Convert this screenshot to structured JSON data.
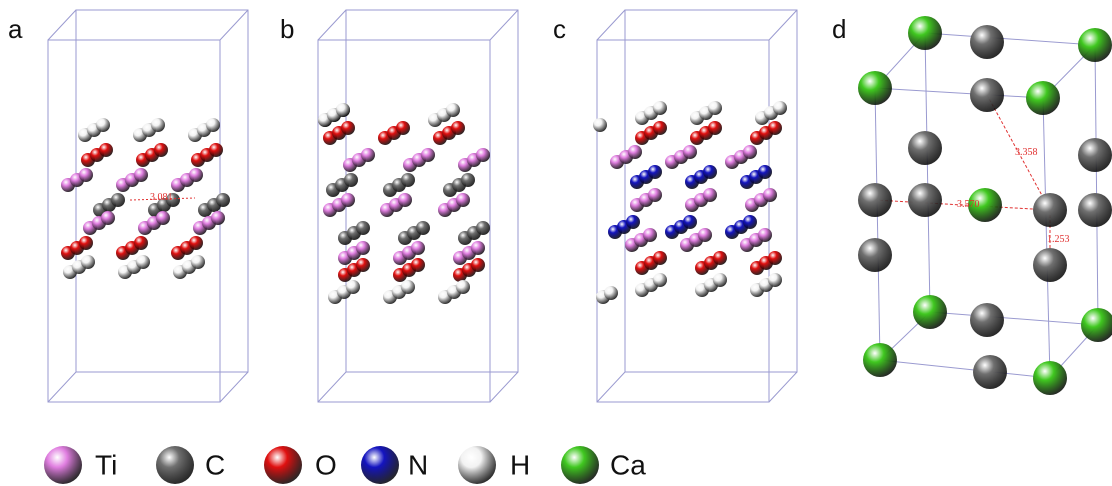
{
  "panels": [
    {
      "label": "a"
    },
    {
      "label": "b"
    },
    {
      "label": "c"
    },
    {
      "label": "d"
    }
  ],
  "distances": [
    {
      "text": "3.081"
    },
    {
      "text": "3.358"
    },
    {
      "text": "3.570"
    },
    {
      "text": "1.253"
    }
  ],
  "legend": [
    {
      "label": "Ti",
      "color": "#e07ee0"
    },
    {
      "label": "C",
      "color": "#707070"
    },
    {
      "label": "O",
      "color": "#e01010"
    },
    {
      "label": "N",
      "color": "#1414c0"
    },
    {
      "label": "H",
      "color": "#f2f2f2"
    },
    {
      "label": "Ca",
      "color": "#40c820"
    }
  ]
}
